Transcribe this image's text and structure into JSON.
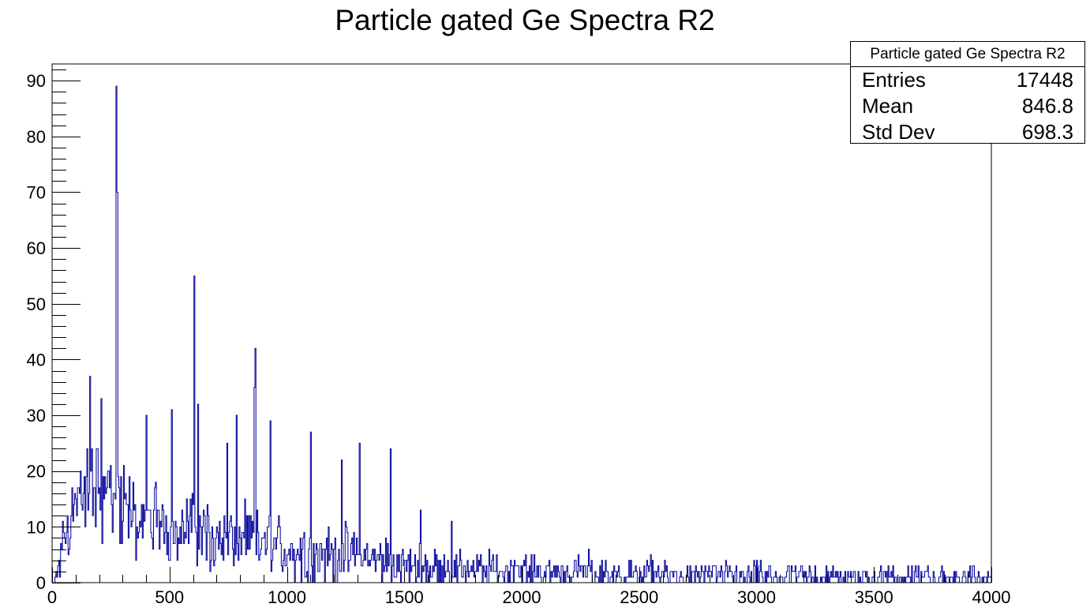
{
  "title": "Particle gated Ge Spectra R2",
  "stats_box": {
    "title": "Particle gated Ge Spectra R2",
    "rows": [
      {
        "label": "Entries",
        "value": "17448"
      },
      {
        "label": "Mean",
        "value": "846.8"
      },
      {
        "label": "Std Dev",
        "value": "698.3"
      }
    ]
  },
  "colors": {
    "histogram": "#000099",
    "axis": "#000000",
    "background": "#ffffff"
  },
  "chart_data": {
    "type": "bar",
    "title": "Particle gated Ge Spectra R2",
    "xlabel": "",
    "ylabel": "",
    "xlim": [
      0,
      4000
    ],
    "ylim": [
      0,
      93
    ],
    "x_ticks": [
      0,
      500,
      1000,
      1500,
      2000,
      2500,
      3000,
      3500,
      4000
    ],
    "y_ticks": [
      0,
      10,
      20,
      30,
      40,
      50,
      60,
      70,
      80,
      90
    ],
    "grid": false,
    "legend": "stats box top-right",
    "entries": 17448,
    "mean": 846.8,
    "std_dev": 698.3,
    "bin_width": 4,
    "peaks": [
      {
        "x": 275,
        "counts": 89
      },
      {
        "x": 278,
        "counts": 70
      },
      {
        "x": 605,
        "counts": 55
      },
      {
        "x": 620,
        "counts": 32
      },
      {
        "x": 867,
        "counts": 42
      },
      {
        "x": 862,
        "counts": 35
      },
      {
        "x": 162,
        "counts": 37
      },
      {
        "x": 210,
        "counts": 33
      },
      {
        "x": 400,
        "counts": 30
      },
      {
        "x": 510,
        "counts": 31
      },
      {
        "x": 785,
        "counts": 30
      },
      {
        "x": 745,
        "counts": 25
      },
      {
        "x": 930,
        "counts": 29
      },
      {
        "x": 1100,
        "counts": 27
      },
      {
        "x": 1235,
        "counts": 22
      },
      {
        "x": 1310,
        "counts": 25
      },
      {
        "x": 1440,
        "counts": 24
      },
      {
        "x": 1570,
        "counts": 13
      },
      {
        "x": 1700,
        "counts": 11
      },
      {
        "x": 3920,
        "counts": 3
      }
    ],
    "envelope": [
      {
        "x": 20,
        "counts": 1
      },
      {
        "x": 40,
        "counts": 6
      },
      {
        "x": 60,
        "counts": 10
      },
      {
        "x": 100,
        "counts": 14
      },
      {
        "x": 150,
        "counts": 16
      },
      {
        "x": 200,
        "counts": 18
      },
      {
        "x": 250,
        "counts": 17
      },
      {
        "x": 300,
        "counts": 12
      },
      {
        "x": 400,
        "counts": 11
      },
      {
        "x": 500,
        "counts": 10
      },
      {
        "x": 600,
        "counts": 10
      },
      {
        "x": 700,
        "counts": 8
      },
      {
        "x": 800,
        "counts": 7
      },
      {
        "x": 900,
        "counts": 7
      },
      {
        "x": 1000,
        "counts": 6
      },
      {
        "x": 1100,
        "counts": 5
      },
      {
        "x": 1200,
        "counts": 5
      },
      {
        "x": 1300,
        "counts": 5
      },
      {
        "x": 1400,
        "counts": 4
      },
      {
        "x": 1500,
        "counts": 3
      },
      {
        "x": 1700,
        "counts": 2.5
      },
      {
        "x": 2000,
        "counts": 2
      },
      {
        "x": 2500,
        "counts": 1.2
      },
      {
        "x": 3000,
        "counts": 1
      },
      {
        "x": 3500,
        "counts": 0.8
      },
      {
        "x": 4000,
        "counts": 0.6
      }
    ]
  }
}
